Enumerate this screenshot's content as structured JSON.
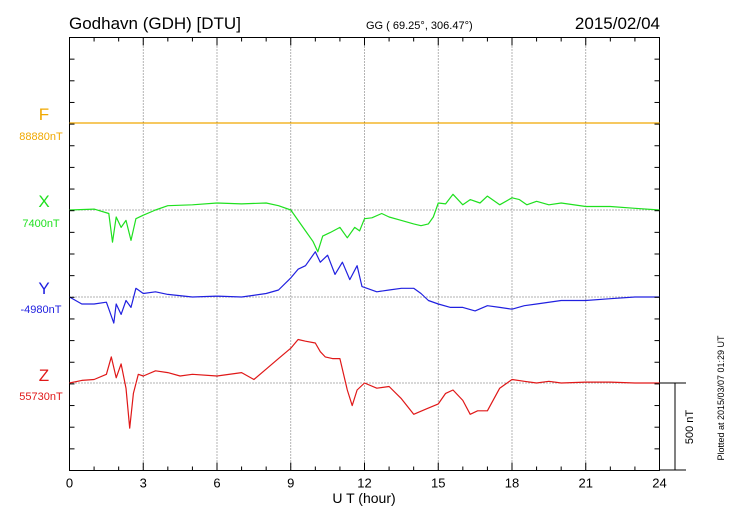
{
  "header": {
    "station": "Godhavn (GDH)  [DTU]",
    "coords": "GG ( 69.25°, 306.47°)",
    "date": "2015/02/04"
  },
  "footer": {
    "xlabel": "U T (hour)",
    "plotted_note": "Plotted at 2015/03/07 01:29 UT"
  },
  "scale": {
    "label": "500 nT",
    "value_nT": 500
  },
  "chart_data": {
    "type": "line",
    "title": "Godhavn (GDH)  [DTU]",
    "xlabel": "U T (hour)",
    "xlim": [
      0,
      24
    ],
    "xticks": [
      0,
      3,
      6,
      9,
      12,
      15,
      18,
      21,
      24
    ],
    "grid": true,
    "series": [
      {
        "name": "F",
        "baseline_label": "88880nT",
        "baseline_nT": 88880,
        "color": "#f0a800",
        "x": [
          0,
          24
        ],
        "y": [
          0,
          0
        ]
      },
      {
        "name": "X",
        "baseline_label": "7400nT",
        "baseline_nT": 7400,
        "color": "#1fe01f",
        "x": [
          0,
          1,
          1.6,
          1.75,
          1.9,
          2.1,
          2.3,
          2.5,
          2.7,
          3,
          3.5,
          4,
          5,
          6,
          7,
          8,
          8.5,
          9,
          9.3,
          9.6,
          9.9,
          10.1,
          10.3,
          10.6,
          11,
          11.3,
          11.6,
          11.8,
          12,
          12.3,
          12.7,
          13,
          13.5,
          14,
          14.3,
          14.6,
          14.8,
          15,
          15.3,
          15.6,
          16,
          16.3,
          16.7,
          17,
          17.5,
          18,
          18.3,
          18.6,
          19,
          19.5,
          20,
          21,
          22,
          23,
          24
        ],
        "y": [
          0,
          5,
          -20,
          -185,
          -40,
          -100,
          -60,
          -175,
          -50,
          -30,
          0,
          25,
          30,
          40,
          35,
          40,
          25,
          0,
          -60,
          -120,
          -180,
          -240,
          -150,
          -130,
          -100,
          -160,
          -100,
          -120,
          -50,
          -45,
          -20,
          -40,
          -60,
          -80,
          -90,
          -80,
          -40,
          40,
          35,
          90,
          30,
          60,
          40,
          80,
          30,
          70,
          60,
          30,
          50,
          30,
          40,
          20,
          20,
          10,
          0
        ]
      },
      {
        "name": "Y",
        "baseline_label": "-4980nT",
        "baseline_nT": -4980,
        "color": "#2020e0",
        "x": [
          0,
          0.5,
          1,
          1.5,
          1.8,
          1.9,
          2.1,
          2.3,
          2.5,
          2.7,
          3,
          3.5,
          4,
          5,
          6,
          7,
          8,
          8.5,
          9,
          9.3,
          9.6,
          10,
          10.2,
          10.5,
          10.8,
          11.1,
          11.4,
          11.7,
          11.9,
          12.1,
          12.5,
          13,
          13.5,
          14,
          14.3,
          14.6,
          15,
          15.5,
          16,
          16.5,
          17,
          17.5,
          18,
          18.5,
          19,
          20,
          21,
          22,
          23,
          24
        ],
        "y": [
          0,
          -40,
          -40,
          -30,
          -150,
          -40,
          -100,
          -20,
          -60,
          50,
          20,
          30,
          15,
          0,
          5,
          0,
          20,
          40,
          110,
          160,
          180,
          260,
          200,
          240,
          130,
          200,
          100,
          180,
          60,
          50,
          30,
          40,
          50,
          50,
          20,
          -20,
          -40,
          -60,
          -60,
          -80,
          -50,
          -60,
          -70,
          -50,
          -40,
          -20,
          -20,
          -10,
          0,
          0
        ]
      },
      {
        "name": "Z",
        "baseline_label": "55730nT",
        "baseline_nT": 55730,
        "color": "#e01818",
        "x": [
          0,
          0.5,
          1,
          1.5,
          1.7,
          1.9,
          2.1,
          2.3,
          2.45,
          2.6,
          2.8,
          3,
          3.5,
          4,
          4.5,
          5,
          6,
          7,
          7.5,
          8,
          8.5,
          9,
          9.3,
          9.6,
          10,
          10.2,
          10.4,
          10.7,
          11,
          11.3,
          11.5,
          11.7,
          12,
          12.5,
          13,
          13.5,
          14,
          14.5,
          15,
          15.3,
          15.6,
          16,
          16.3,
          16.6,
          17,
          17.5,
          18,
          18.5,
          19,
          19.5,
          20,
          21,
          22,
          23,
          24
        ],
        "y": [
          0,
          15,
          20,
          50,
          150,
          30,
          110,
          -30,
          -260,
          -60,
          50,
          40,
          70,
          60,
          40,
          50,
          40,
          60,
          20,
          80,
          140,
          200,
          250,
          240,
          230,
          180,
          150,
          140,
          140,
          -40,
          -130,
          -40,
          0,
          -30,
          -20,
          -90,
          -180,
          -150,
          -120,
          -60,
          -40,
          -100,
          -180,
          -160,
          -160,
          -30,
          20,
          10,
          0,
          10,
          0,
          5,
          5,
          0,
          0
        ]
      }
    ]
  }
}
